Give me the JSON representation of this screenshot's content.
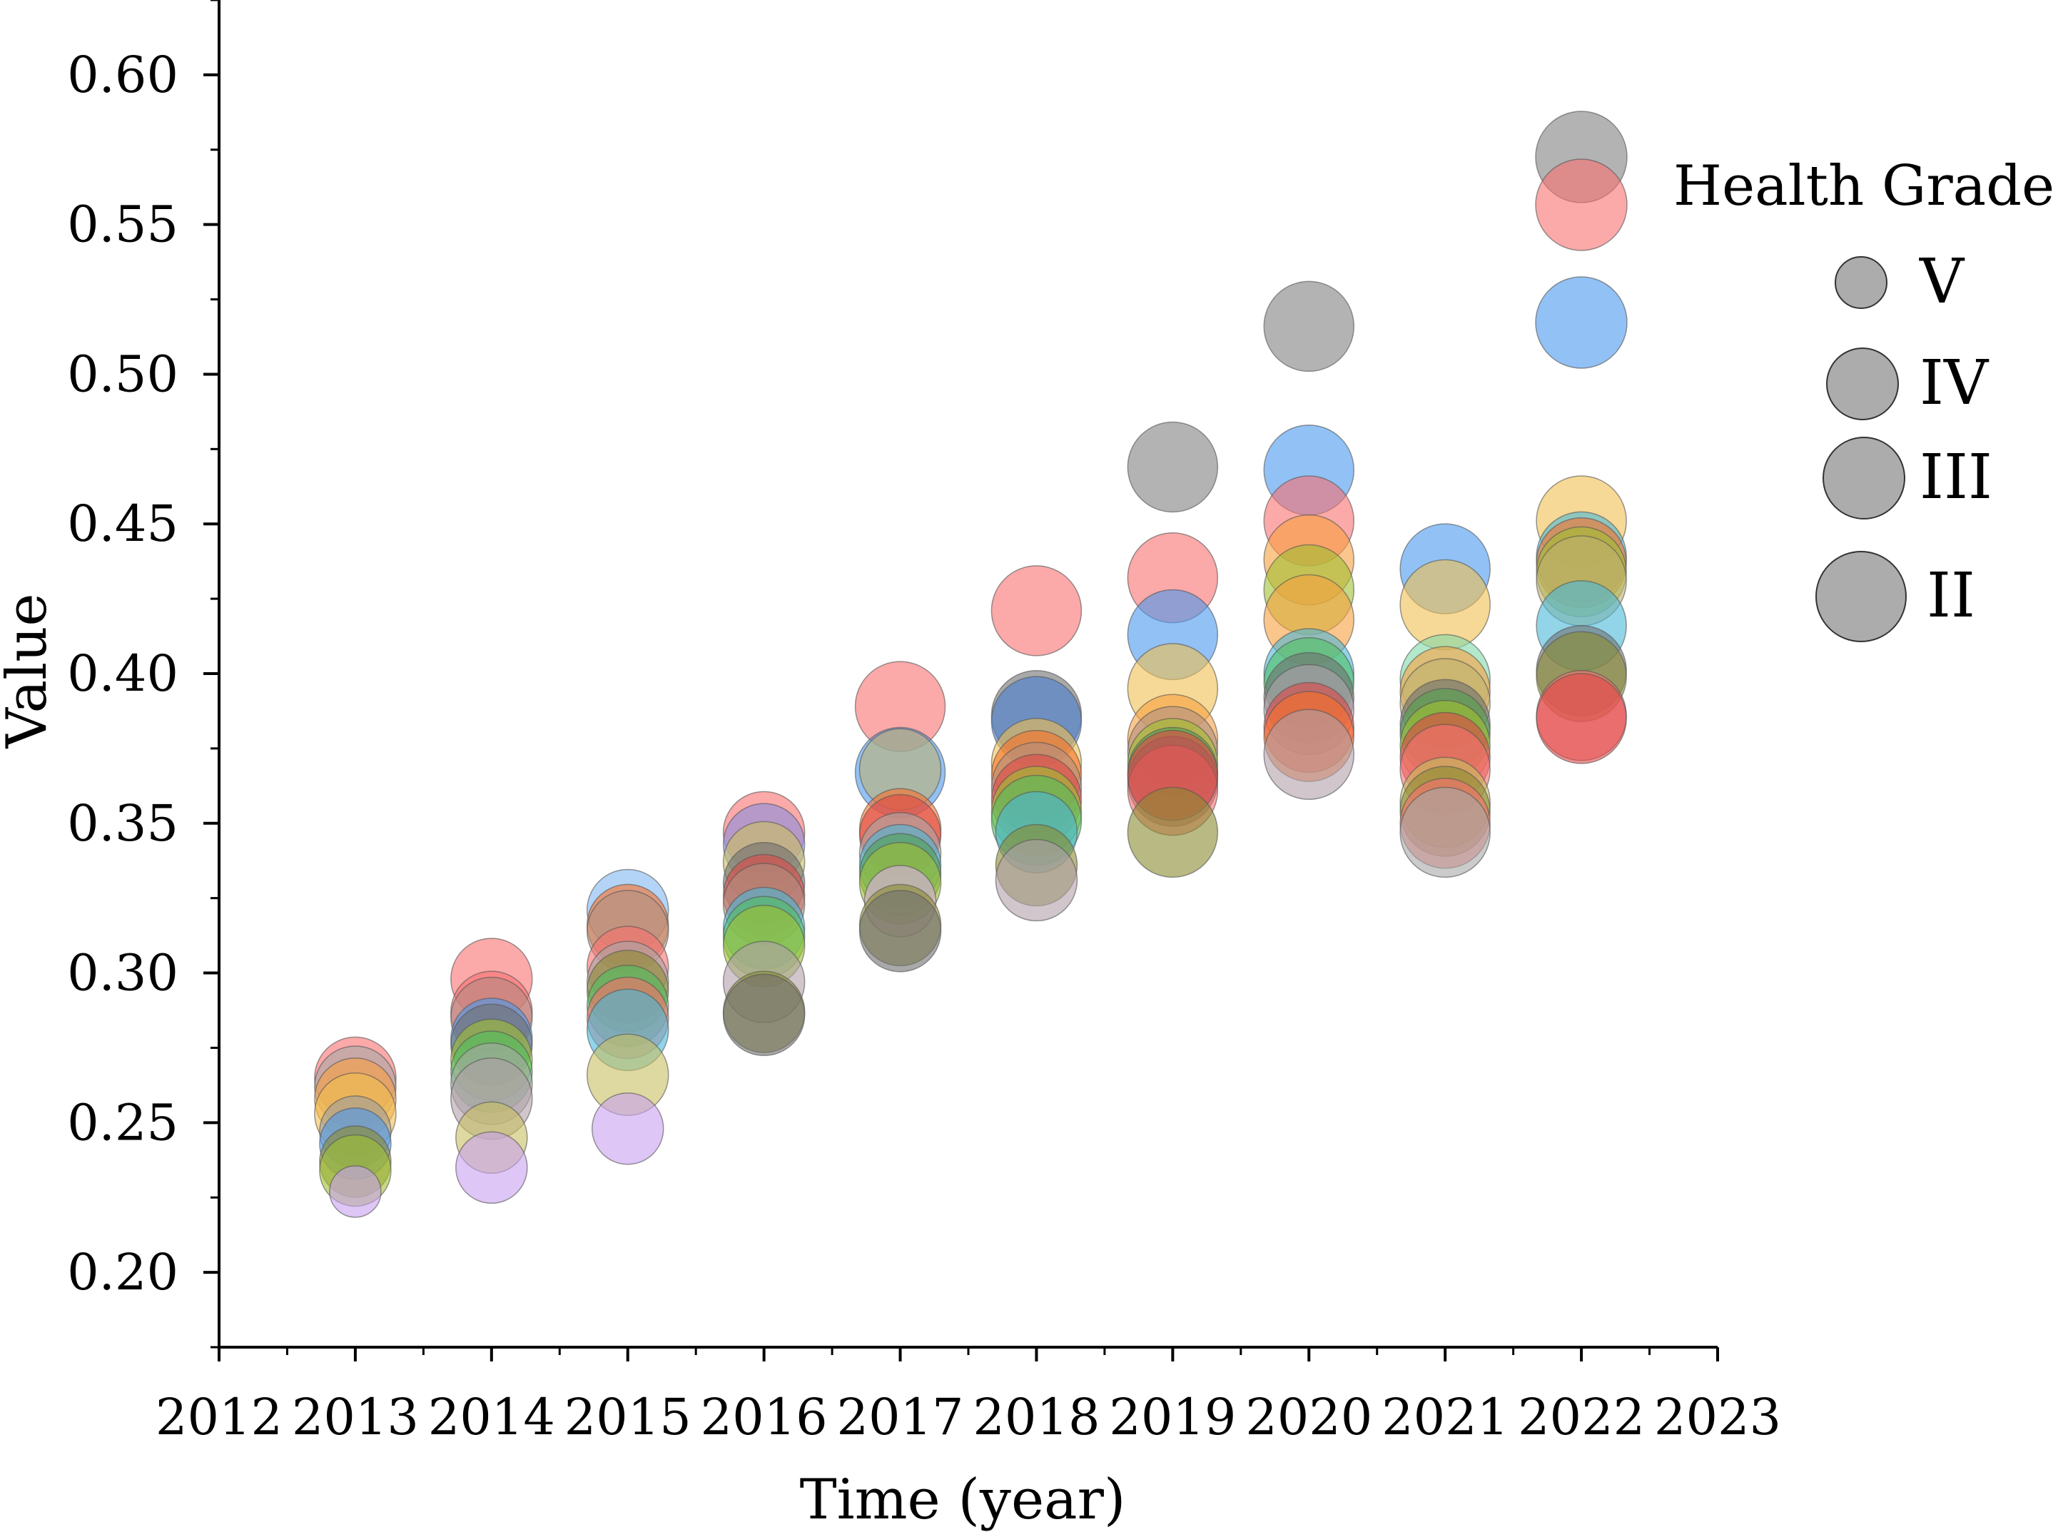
{
  "chart_data": {
    "type": "scatter",
    "subtype": "bubble",
    "xlabel": "Time (year)",
    "ylabel": "Value",
    "xlim": [
      2012,
      2023
    ],
    "ylim": [
      0.175,
      0.625
    ],
    "xticks": [
      "2012",
      "2013",
      "2014",
      "2015",
      "2016",
      "2017",
      "2018",
      "2019",
      "2020",
      "2021",
      "2022",
      "2023"
    ],
    "yticks": [
      "0.20",
      "0.25",
      "0.30",
      "0.35",
      "0.40",
      "0.45",
      "0.50",
      "0.55",
      "0.60"
    ],
    "grid": false,
    "legend": {
      "title": "Health Grade",
      "placement": "top-right",
      "color": "#808080",
      "entries": [
        {
          "label": "V",
          "size": 1
        },
        {
          "label": "IV",
          "size": 2
        },
        {
          "label": "III",
          "size": 3
        },
        {
          "label": "II",
          "size": 4
        }
      ]
    },
    "legend_color_swatches": [
      "#808080",
      "#f87070",
      "#4a98ee"
    ],
    "points": [
      {
        "x": 2013,
        "y": 0.265,
        "color": "#f87070",
        "size": 3
      },
      {
        "x": 2013,
        "y": 0.262,
        "color": "#a8a8a8",
        "size": 3
      },
      {
        "x": 2013,
        "y": 0.258,
        "color": "#f8a040",
        "size": 3
      },
      {
        "x": 2013,
        "y": 0.253,
        "color": "#f0c050",
        "size": 3
      },
      {
        "x": 2013,
        "y": 0.247,
        "color": "#9e9e9e",
        "size": 2
      },
      {
        "x": 2013,
        "y": 0.243,
        "color": "#4a98ee",
        "size": 2
      },
      {
        "x": 2013,
        "y": 0.237,
        "color": "#8a8a30",
        "size": 2
      },
      {
        "x": 2013,
        "y": 0.234,
        "color": "#a0c030",
        "size": 2
      },
      {
        "x": 2013,
        "y": 0.227,
        "color": "#c8a0f0",
        "size": 1
      },
      {
        "x": 2014,
        "y": 0.298,
        "color": "#f87070",
        "size": 3
      },
      {
        "x": 2014,
        "y": 0.287,
        "color": "#f87070",
        "size": 3
      },
      {
        "x": 2014,
        "y": 0.285,
        "color": "#b08880",
        "size": 3
      },
      {
        "x": 2014,
        "y": 0.278,
        "color": "#4a98ee",
        "size": 3
      },
      {
        "x": 2014,
        "y": 0.276,
        "color": "#707070",
        "size": 3
      },
      {
        "x": 2014,
        "y": 0.271,
        "color": "#a0c030",
        "size": 3
      },
      {
        "x": 2014,
        "y": 0.267,
        "color": "#50c060",
        "size": 3
      },
      {
        "x": 2014,
        "y": 0.263,
        "color": "#a8a8a8",
        "size": 3
      },
      {
        "x": 2014,
        "y": 0.258,
        "color": "#b0a0a8",
        "size": 3
      },
      {
        "x": 2014,
        "y": 0.245,
        "color": "#c8c060",
        "size": 2
      },
      {
        "x": 2014,
        "y": 0.235,
        "color": "#c8a0f0",
        "size": 2
      },
      {
        "x": 2015,
        "y": 0.321,
        "color": "#80b8f0",
        "size": 3
      },
      {
        "x": 2015,
        "y": 0.316,
        "color": "#f87028",
        "size": 3
      },
      {
        "x": 2015,
        "y": 0.314,
        "color": "#b09080",
        "size": 3
      },
      {
        "x": 2015,
        "y": 0.302,
        "color": "#f87070",
        "size": 3
      },
      {
        "x": 2015,
        "y": 0.297,
        "color": "#a8a8a8",
        "size": 3
      },
      {
        "x": 2015,
        "y": 0.294,
        "color": "#8a8a30",
        "size": 3
      },
      {
        "x": 2015,
        "y": 0.289,
        "color": "#50c060",
        "size": 3
      },
      {
        "x": 2015,
        "y": 0.285,
        "color": "#f87070",
        "size": 3
      },
      {
        "x": 2015,
        "y": 0.281,
        "color": "#4ab8d8",
        "size": 3
      },
      {
        "x": 2015,
        "y": 0.266,
        "color": "#c8c060",
        "size": 3
      },
      {
        "x": 2015,
        "y": 0.248,
        "color": "#c8a0f0",
        "size": 2
      },
      {
        "x": 2016,
        "y": 0.347,
        "color": "#f87070",
        "size": 3
      },
      {
        "x": 2016,
        "y": 0.343,
        "color": "#8890e0",
        "size": 3
      },
      {
        "x": 2016,
        "y": 0.337,
        "color": "#c8c060",
        "size": 3
      },
      {
        "x": 2016,
        "y": 0.33,
        "color": "#707070",
        "size": 3
      },
      {
        "x": 2016,
        "y": 0.326,
        "color": "#e04848",
        "size": 3
      },
      {
        "x": 2016,
        "y": 0.323,
        "color": "#b09080",
        "size": 3
      },
      {
        "x": 2016,
        "y": 0.315,
        "color": "#4ab8d8",
        "size": 3
      },
      {
        "x": 2016,
        "y": 0.312,
        "color": "#50c060",
        "size": 3
      },
      {
        "x": 2016,
        "y": 0.309,
        "color": "#a0c030",
        "size": 3
      },
      {
        "x": 2016,
        "y": 0.297,
        "color": "#b0a0a8",
        "size": 3
      },
      {
        "x": 2016,
        "y": 0.287,
        "color": "#8a8a30",
        "size": 3
      },
      {
        "x": 2016,
        "y": 0.286,
        "color": "#707070",
        "size": 3
      },
      {
        "x": 2017,
        "y": 0.389,
        "color": "#f87070",
        "size": 4
      },
      {
        "x": 2017,
        "y": 0.367,
        "color": "#4a98ee",
        "size": 4
      },
      {
        "x": 2017,
        "y": 0.368,
        "color": "#c0b070",
        "size": 3
      },
      {
        "x": 2017,
        "y": 0.348,
        "color": "#f87028",
        "size": 3
      },
      {
        "x": 2017,
        "y": 0.346,
        "color": "#e04848",
        "size": 3
      },
      {
        "x": 2017,
        "y": 0.34,
        "color": "#a8a8a8",
        "size": 3
      },
      {
        "x": 2017,
        "y": 0.336,
        "color": "#4ab8d8",
        "size": 3
      },
      {
        "x": 2017,
        "y": 0.333,
        "color": "#50a050",
        "size": 3
      },
      {
        "x": 2017,
        "y": 0.33,
        "color": "#a0c030",
        "size": 3
      },
      {
        "x": 2017,
        "y": 0.324,
        "color": "#e0b0e8",
        "size": 2
      },
      {
        "x": 2017,
        "y": 0.316,
        "color": "#8a8a30",
        "size": 3
      },
      {
        "x": 2017,
        "y": 0.314,
        "color": "#707070",
        "size": 3
      },
      {
        "x": 2018,
        "y": 0.421,
        "color": "#f87070",
        "size": 4
      },
      {
        "x": 2018,
        "y": 0.386,
        "color": "#707070",
        "size": 4
      },
      {
        "x": 2018,
        "y": 0.384,
        "color": "#4a7ed0",
        "size": 4
      },
      {
        "x": 2018,
        "y": 0.37,
        "color": "#f0c050",
        "size": 4
      },
      {
        "x": 2018,
        "y": 0.366,
        "color": "#f87028",
        "size": 4
      },
      {
        "x": 2018,
        "y": 0.362,
        "color": "#b09080",
        "size": 4
      },
      {
        "x": 2018,
        "y": 0.358,
        "color": "#e04848",
        "size": 4
      },
      {
        "x": 2018,
        "y": 0.354,
        "color": "#a0c030",
        "size": 4
      },
      {
        "x": 2018,
        "y": 0.351,
        "color": "#50c060",
        "size": 4
      },
      {
        "x": 2018,
        "y": 0.347,
        "color": "#4ab8d8",
        "size": 3
      },
      {
        "x": 2018,
        "y": 0.336,
        "color": "#8a8a30",
        "size": 3
      },
      {
        "x": 2018,
        "y": 0.331,
        "color": "#b0a0a8",
        "size": 3
      },
      {
        "x": 2019,
        "y": 0.469,
        "color": "#808080",
        "size": 4
      },
      {
        "x": 2019,
        "y": 0.432,
        "color": "#f87070",
        "size": 4
      },
      {
        "x": 2019,
        "y": 0.413,
        "color": "#4a98ee",
        "size": 4
      },
      {
        "x": 2019,
        "y": 0.395,
        "color": "#f0c050",
        "size": 4
      },
      {
        "x": 2019,
        "y": 0.378,
        "color": "#f8a040",
        "size": 4
      },
      {
        "x": 2019,
        "y": 0.374,
        "color": "#b09080",
        "size": 4
      },
      {
        "x": 2019,
        "y": 0.37,
        "color": "#a0c030",
        "size": 4
      },
      {
        "x": 2019,
        "y": 0.367,
        "color": "#50a050",
        "size": 4
      },
      {
        "x": 2019,
        "y": 0.364,
        "color": "#707070",
        "size": 4
      },
      {
        "x": 2019,
        "y": 0.361,
        "color": "#f87070",
        "size": 4
      },
      {
        "x": 2019,
        "y": 0.366,
        "color": "#e04848",
        "size": 4
      },
      {
        "x": 2019,
        "y": 0.347,
        "color": "#8a8a30",
        "size": 4
      },
      {
        "x": 2020,
        "y": 0.516,
        "color": "#808080",
        "size": 4
      },
      {
        "x": 2020,
        "y": 0.468,
        "color": "#4a98ee",
        "size": 4
      },
      {
        "x": 2020,
        "y": 0.451,
        "color": "#f87070",
        "size": 4
      },
      {
        "x": 2020,
        "y": 0.438,
        "color": "#f8a040",
        "size": 4
      },
      {
        "x": 2020,
        "y": 0.428,
        "color": "#a0c030",
        "size": 4
      },
      {
        "x": 2020,
        "y": 0.418,
        "color": "#f8a040",
        "size": 4
      },
      {
        "x": 2020,
        "y": 0.4,
        "color": "#4ab8d8",
        "size": 4
      },
      {
        "x": 2020,
        "y": 0.397,
        "color": "#50c060",
        "size": 4
      },
      {
        "x": 2020,
        "y": 0.392,
        "color": "#707070",
        "size": 4
      },
      {
        "x": 2020,
        "y": 0.388,
        "color": "#b0a0a8",
        "size": 4
      },
      {
        "x": 2020,
        "y": 0.382,
        "color": "#e04848",
        "size": 4
      },
      {
        "x": 2020,
        "y": 0.379,
        "color": "#f87028",
        "size": 4
      },
      {
        "x": 2020,
        "y": 0.373,
        "color": "#b0a0a8",
        "size": 4
      },
      {
        "x": 2021,
        "y": 0.435,
        "color": "#4a98ee",
        "size": 4
      },
      {
        "x": 2021,
        "y": 0.423,
        "color": "#f0c050",
        "size": 4
      },
      {
        "x": 2021,
        "y": 0.398,
        "color": "#80d8a8",
        "size": 4
      },
      {
        "x": 2021,
        "y": 0.394,
        "color": "#f8a040",
        "size": 4
      },
      {
        "x": 2021,
        "y": 0.39,
        "color": "#c0b070",
        "size": 4
      },
      {
        "x": 2021,
        "y": 0.383,
        "color": "#707070",
        "size": 4
      },
      {
        "x": 2021,
        "y": 0.38,
        "color": "#50a050",
        "size": 4
      },
      {
        "x": 2021,
        "y": 0.376,
        "color": "#a0c030",
        "size": 4
      },
      {
        "x": 2021,
        "y": 0.372,
        "color": "#e04848",
        "size": 4
      },
      {
        "x": 2021,
        "y": 0.368,
        "color": "#f87070",
        "size": 4
      },
      {
        "x": 2021,
        "y": 0.357,
        "color": "#c8c060",
        "size": 4
      },
      {
        "x": 2021,
        "y": 0.354,
        "color": "#8a8a30",
        "size": 4
      },
      {
        "x": 2021,
        "y": 0.35,
        "color": "#f87070",
        "size": 4
      },
      {
        "x": 2021,
        "y": 0.347,
        "color": "#a8a8a8",
        "size": 4
      },
      {
        "x": 2022,
        "y": 0.451,
        "color": "#f0c050",
        "size": 4
      },
      {
        "x": 2022,
        "y": 0.439,
        "color": "#4ab8d8",
        "size": 4
      },
      {
        "x": 2022,
        "y": 0.437,
        "color": "#f87028",
        "size": 4
      },
      {
        "x": 2022,
        "y": 0.434,
        "color": "#a0c030",
        "size": 4
      },
      {
        "x": 2022,
        "y": 0.431,
        "color": "#c0b070",
        "size": 4
      },
      {
        "x": 2022,
        "y": 0.416,
        "color": "#4ab8d8",
        "size": 4
      },
      {
        "x": 2022,
        "y": 0.401,
        "color": "#707070",
        "size": 4
      },
      {
        "x": 2022,
        "y": 0.399,
        "color": "#8a8a30",
        "size": 4
      },
      {
        "x": 2022,
        "y": 0.386,
        "color": "#f87070",
        "size": 4
      },
      {
        "x": 2022,
        "y": 0.385,
        "color": "#e04848",
        "size": 4
      }
    ]
  }
}
